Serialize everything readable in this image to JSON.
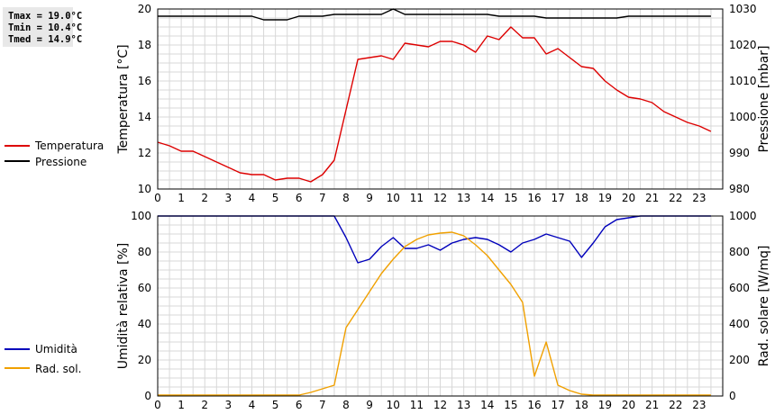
{
  "stats": {
    "tmax": "Tmax = 19.0°C",
    "tmin": "Tmin = 10.4°C",
    "tmed": "Tmed = 14.9°C"
  },
  "colors": {
    "temperature": "#dd0000",
    "pressure": "#000000",
    "humidity": "#0000bb",
    "solar": "#f0a000",
    "grid": "#d8d8d8"
  },
  "chart_data": [
    {
      "type": "line",
      "x": [
        0,
        0.5,
        1,
        1.5,
        2,
        2.5,
        3,
        3.5,
        4,
        4.5,
        5,
        5.5,
        6,
        6.5,
        7,
        7.5,
        8,
        8.5,
        9,
        9.5,
        10,
        10.5,
        11,
        11.5,
        12,
        12.5,
        13,
        13.5,
        14,
        14.5,
        15,
        15.5,
        16,
        16.5,
        17,
        17.5,
        18,
        18.5,
        19,
        19.5,
        20,
        20.5,
        21,
        21.5,
        22,
        22.5,
        23,
        23.5
      ],
      "xlim": [
        0,
        24
      ],
      "xticks": [
        "0",
        "1",
        "2",
        "3",
        "4",
        "5",
        "6",
        "7",
        "8",
        "9",
        "10",
        "11",
        "12",
        "13",
        "14",
        "15",
        "16",
        "17",
        "18",
        "19",
        "20",
        "21",
        "22",
        "23"
      ],
      "ylabel": "Temperatura [°C]",
      "ylim": [
        10,
        20
      ],
      "yticks": [
        "10",
        "12",
        "14",
        "16",
        "18",
        "20"
      ],
      "y2label": "Pressione [mbar]",
      "y2lim": [
        980,
        1030
      ],
      "y2ticks": [
        "980",
        "990",
        "1000",
        "1010",
        "1020",
        "1030"
      ],
      "grid": true,
      "legend_position": "left",
      "series": [
        {
          "name": "Temperatura",
          "axis": "left",
          "values": [
            12.6,
            12.4,
            12.1,
            12.1,
            11.8,
            11.5,
            11.2,
            10.9,
            10.8,
            10.8,
            10.5,
            10.6,
            10.6,
            10.4,
            10.8,
            11.6,
            14.4,
            17.2,
            17.3,
            17.4,
            17.2,
            18.1,
            18.0,
            17.9,
            18.2,
            18.2,
            18.0,
            17.6,
            18.5,
            18.3,
            19.0,
            18.4,
            18.4,
            17.5,
            17.8,
            17.3,
            16.8,
            16.7,
            16.0,
            15.5,
            15.1,
            15.0,
            14.8,
            14.3,
            14.0,
            13.7,
            13.5,
            13.2
          ]
        },
        {
          "name": "Pressione",
          "axis": "right",
          "values": [
            1028,
            1028,
            1028,
            1028,
            1028,
            1028,
            1028,
            1028,
            1028,
            1027,
            1027,
            1027,
            1028,
            1028,
            1028,
            1028.5,
            1028.5,
            1028.5,
            1028.5,
            1028.5,
            1030,
            1028.5,
            1028.5,
            1028.5,
            1028.5,
            1028.5,
            1028.5,
            1028.5,
            1028.5,
            1028,
            1028,
            1028,
            1028,
            1027.5,
            1027.5,
            1027.5,
            1027.5,
            1027.5,
            1027.5,
            1027.5,
            1028,
            1028,
            1028,
            1028,
            1028,
            1028,
            1028,
            1028
          ]
        }
      ]
    },
    {
      "type": "line",
      "x": [
        0,
        0.5,
        1,
        1.5,
        2,
        2.5,
        3,
        3.5,
        4,
        4.5,
        5,
        5.5,
        6,
        6.5,
        7,
        7.5,
        8,
        8.5,
        9,
        9.5,
        10,
        10.5,
        11,
        11.5,
        12,
        12.5,
        13,
        13.5,
        14,
        14.5,
        15,
        15.5,
        16,
        16.5,
        17,
        17.5,
        18,
        18.5,
        19,
        19.5,
        20,
        20.5,
        21,
        21.5,
        22,
        22.5,
        23,
        23.5
      ],
      "xlim": [
        0,
        24
      ],
      "xticks": [
        "0",
        "1",
        "2",
        "3",
        "4",
        "5",
        "6",
        "7",
        "8",
        "9",
        "10",
        "11",
        "12",
        "13",
        "14",
        "15",
        "16",
        "17",
        "18",
        "19",
        "20",
        "21",
        "22",
        "23"
      ],
      "ylabel": "Umidità relativa [%]",
      "ylim": [
        0,
        100
      ],
      "yticks": [
        "0",
        "20",
        "40",
        "60",
        "80",
        "100"
      ],
      "y2label": "Rad. solare [W/mq]",
      "y2lim": [
        0,
        1000
      ],
      "y2ticks": [
        "0",
        "200",
        "400",
        "600",
        "800",
        "1000"
      ],
      "grid": true,
      "legend_position": "left",
      "series": [
        {
          "name": "Umidità",
          "axis": "left",
          "values": [
            100,
            100,
            100,
            100,
            100,
            100,
            100,
            100,
            100,
            100,
            100,
            100,
            100,
            100,
            100,
            100,
            88,
            74,
            76,
            83,
            88,
            82,
            82,
            84,
            81,
            85,
            87,
            88,
            87,
            84,
            80,
            85,
            87,
            90,
            88,
            86,
            77,
            85,
            94,
            98,
            99,
            100,
            100,
            100,
            100,
            100,
            100,
            100
          ]
        },
        {
          "name": "Rad. sol.",
          "axis": "right",
          "values": [
            5,
            5,
            5,
            5,
            5,
            5,
            5,
            5,
            5,
            5,
            5,
            5,
            5,
            20,
            40,
            60,
            380,
            480,
            580,
            680,
            760,
            830,
            870,
            895,
            905,
            910,
            890,
            840,
            780,
            700,
            620,
            520,
            110,
            300,
            60,
            30,
            10,
            5,
            5,
            5,
            5,
            5,
            5,
            5,
            5,
            5,
            5,
            5
          ]
        }
      ]
    }
  ]
}
